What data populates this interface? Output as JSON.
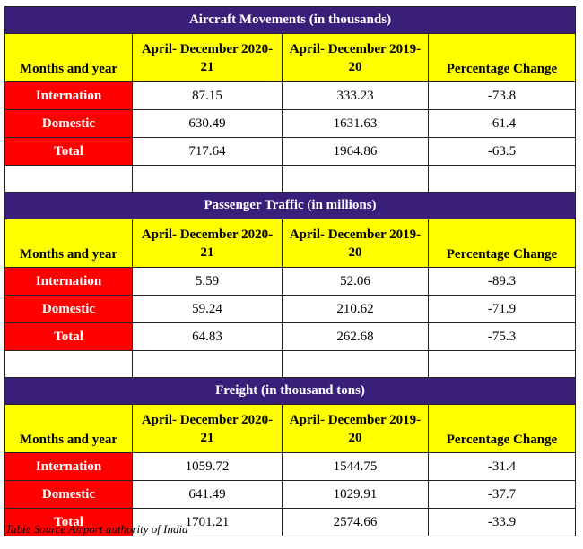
{
  "column_headers": {
    "months_and_year": "Months and year",
    "period_1": "April- December 2020-21",
    "period_2": "April- December 2019-20",
    "percentage_change": "Percentage Change"
  },
  "sections": [
    {
      "title": "Aircraft Movements (in thousands)",
      "rows": [
        {
          "label": "Internation",
          "v2020": "87.15",
          "v2019": "333.23",
          "change": "-73.8"
        },
        {
          "label": "Domestic",
          "v2020": "630.49",
          "v2019": "1631.63",
          "change": "-61.4"
        },
        {
          "label": "Total",
          "v2020": "717.64",
          "v2019": "1964.86",
          "change": "-63.5"
        }
      ]
    },
    {
      "title": "Passenger Traffic (in millions)",
      "rows": [
        {
          "label": "Internation",
          "v2020": "5.59",
          "v2019": "52.06",
          "change": "-89.3"
        },
        {
          "label": "Domestic",
          "v2020": "59.24",
          "v2019": "210.62",
          "change": "-71.9"
        },
        {
          "label": "Total",
          "v2020": "64.83",
          "v2019": "262.68",
          "change": "-75.3"
        }
      ]
    },
    {
      "title": "Freight (in thousand tons)",
      "rows": [
        {
          "label": "Internation",
          "v2020": "1059.72",
          "v2019": "1544.75",
          "change": "-31.4"
        },
        {
          "label": "Domestic",
          "v2020": "641.49",
          "v2019": "1029.91",
          "change": "-37.7"
        },
        {
          "label": "Total",
          "v2020": "1701.21",
          "v2019": "2574.66",
          "change": "-33.9"
        }
      ]
    }
  ],
  "source_note": "Table Source Airport authority of India",
  "colors": {
    "title_bar": "#3a1f7a",
    "header_fill": "#ffff00",
    "row_label_fill": "#ff0000"
  }
}
